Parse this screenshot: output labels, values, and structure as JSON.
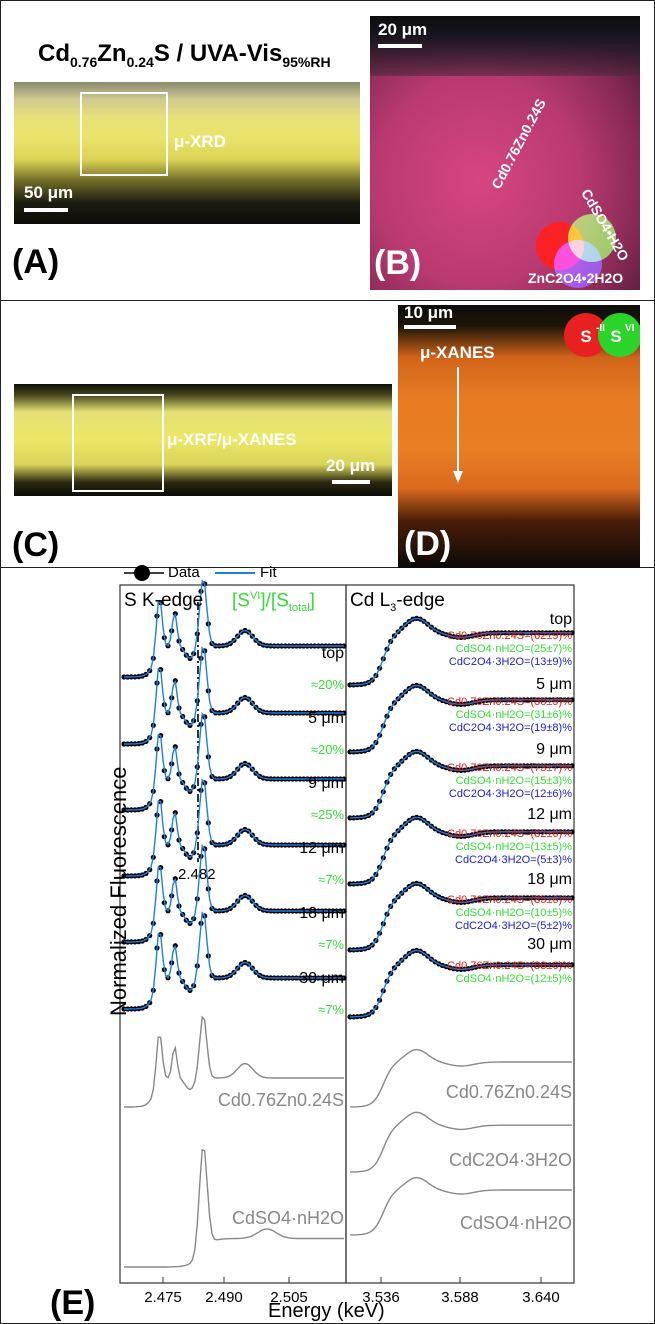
{
  "panels": {
    "a": {
      "label": "(A)",
      "title_main": "Cd",
      "title_sub1": "0.76",
      "title_mid": "Zn",
      "title_sub2": "0.24",
      "title_rest": "S / UVA-Vis",
      "title_sub3": "95%RH",
      "box_label": "μ-XRD",
      "scale": "50 μm"
    },
    "b": {
      "label": "(B)",
      "scale": "20 μm",
      "legend_1": "Cd0.76Zn0.24S",
      "legend_2": "CdSO4•H2O",
      "legend_3": "ZnC2O4•2H2O"
    },
    "c": {
      "label": "(C)",
      "box_label": "μ-XRF/μ-XANES",
      "scale": "20 μm"
    },
    "d": {
      "label": "(D)",
      "scale": "10 μm",
      "arrow_label": "μ-XANES",
      "legend_s2": "S-II",
      "legend_s6": "SVI"
    },
    "e": {
      "label": "(E)",
      "legend_data": "Data",
      "legend_fit": "Fit",
      "left_title": "S K-edge",
      "ratio_header": "[SVI]/[Stotal]",
      "right_title": "Cd L3-edge",
      "ylabel": "Normalized Fluorescence",
      "xlabel": "Energy (keV)",
      "dashline_label": "2.482",
      "left_ticks": [
        "2.475",
        "2.490",
        "2.505"
      ],
      "right_ticks": [
        "3.536",
        "3.588",
        "3.640"
      ],
      "depths": [
        "top",
        "5 μm",
        "9 μm",
        "12 μm",
        "18 μm",
        "30 μm"
      ],
      "ratios": [
        "≈20%",
        "≈20%",
        "≈25%",
        "≈7%",
        "≈7%",
        "≈7%"
      ],
      "ref_left": [
        "Cd0.76Zn0.24S",
        "CdSO4·nH2O"
      ],
      "ref_right": [
        "Cd0.76Zn0.24S",
        "CdC2O4·3H2O",
        "CdSO4·nH2O"
      ],
      "fits": [
        {
          "a": "Cd0.76Zn0.24S=(62±9)%",
          "b": "CdSO4·nH2O=(25±7)%",
          "c": "CdC2O4·3H2O=(13±9)%"
        },
        {
          "a": "Cd0.76Zn0.24S=(50±9)%",
          "b": "CdSO4·nH2O=(31±6)%",
          "c": "CdC2O4·3H2O=(19±8)%"
        },
        {
          "a": "Cd0.76Zn0.24S=(73±7)%",
          "b": "CdSO4·nH2O=(15±3)%",
          "c": "CdC2O4·3H2O=(12±6)%"
        },
        {
          "a": "Cd0.76Zn0.24S=(82±6)%",
          "b": "CdSO4·nH2O=(13±5)%",
          "c": "CdC2O4·3H2O=(5±3)%"
        },
        {
          "a": "Cd0.76Zn0.24S=(85±6)%",
          "b": "CdSO4·nH2O=(10±5)%",
          "c": "CdC2O4·3H2O=(5±2)%"
        },
        {
          "a": "Cd0.76Zn0.24S=(88±6)%",
          "b": "CdSO4·nH2O=(12±5)%",
          "c": ""
        }
      ]
    }
  },
  "colors": {
    "fit": "#1e7fe0",
    "data": "#000000",
    "reference": "#888888",
    "green": "#33dd33",
    "red": "#e01515",
    "blue": "#1a1ae0"
  }
}
